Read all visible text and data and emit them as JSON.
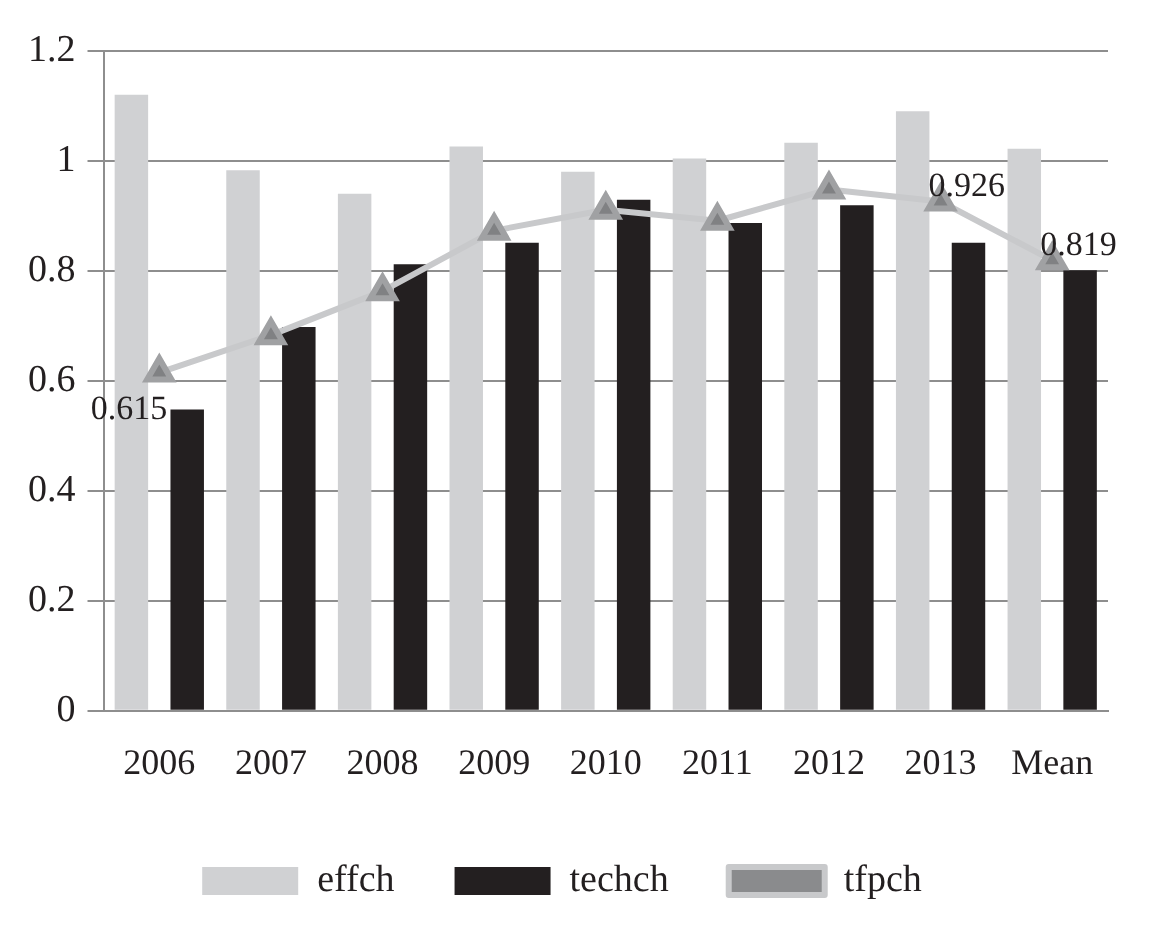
{
  "chart_data": {
    "type": "bar",
    "categories": [
      "2006",
      "2007",
      "2008",
      "2009",
      "2010",
      "2011",
      "2012",
      "2013",
      "Mean"
    ],
    "series": [
      {
        "name": "effch",
        "color": "#d0d1d3",
        "values": [
          1.12,
          0.983,
          0.94,
          1.026,
          0.98,
          1.004,
          1.033,
          1.09,
          1.022
        ]
      },
      {
        "name": "techch",
        "color": "#231f20",
        "values": [
          0.548,
          0.698,
          0.812,
          0.851,
          0.929,
          0.887,
          0.919,
          0.851,
          0.801
        ]
      },
      {
        "name": "tfpch",
        "type": "line",
        "color": "#c8c9cb",
        "marker": "triangle",
        "values": [
          0.615,
          0.683,
          0.763,
          0.873,
          0.911,
          0.891,
          0.948,
          0.926,
          0.819
        ],
        "value_labels": [
          "0.615",
          null,
          null,
          null,
          null,
          null,
          null,
          "0.926",
          "0.819"
        ]
      }
    ],
    "ylim": [
      0,
      1.2
    ],
    "yticks": [
      0,
      0.2,
      0.4,
      0.6,
      0.8,
      1,
      1.2
    ],
    "grid": "y",
    "legend": "bottom"
  }
}
